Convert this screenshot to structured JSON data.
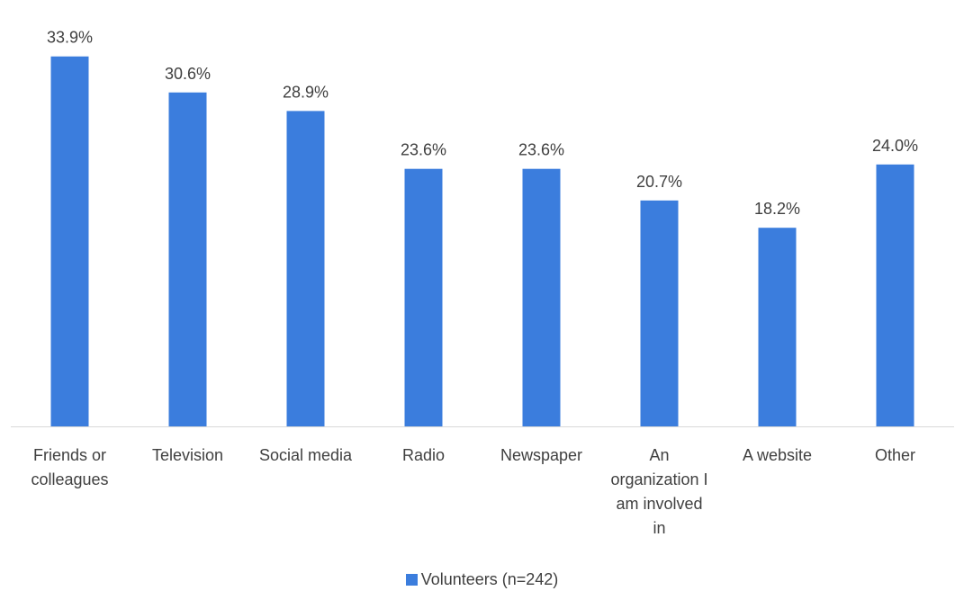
{
  "chart_data": {
    "type": "bar",
    "categories": [
      "Friends or colleagues",
      "Television",
      "Social media",
      "Radio",
      "Newspaper",
      "An organization I am involved in",
      "A website",
      "Other"
    ],
    "category_lines": [
      [
        "Friends or",
        "colleagues"
      ],
      [
        "Television"
      ],
      [
        "Social media"
      ],
      [
        "Radio"
      ],
      [
        "Newspaper"
      ],
      [
        "An",
        "organization I",
        "am involved",
        "in"
      ],
      [
        "A website"
      ],
      [
        "Other"
      ]
    ],
    "series": [
      {
        "name": "Volunteers (n=242)",
        "values": [
          33.9,
          30.6,
          28.9,
          23.6,
          23.6,
          20.7,
          18.2,
          24.0
        ],
        "labels": [
          "33.9%",
          "30.6%",
          "28.9%",
          "23.6%",
          "23.6%",
          "20.7%",
          "18.2%",
          "24.0%"
        ],
        "color": "#3b7ddd"
      }
    ],
    "ylim": [
      0,
      38
    ],
    "grid": false,
    "legend_position": "bottom",
    "axis_color": "#d9d9d9"
  }
}
